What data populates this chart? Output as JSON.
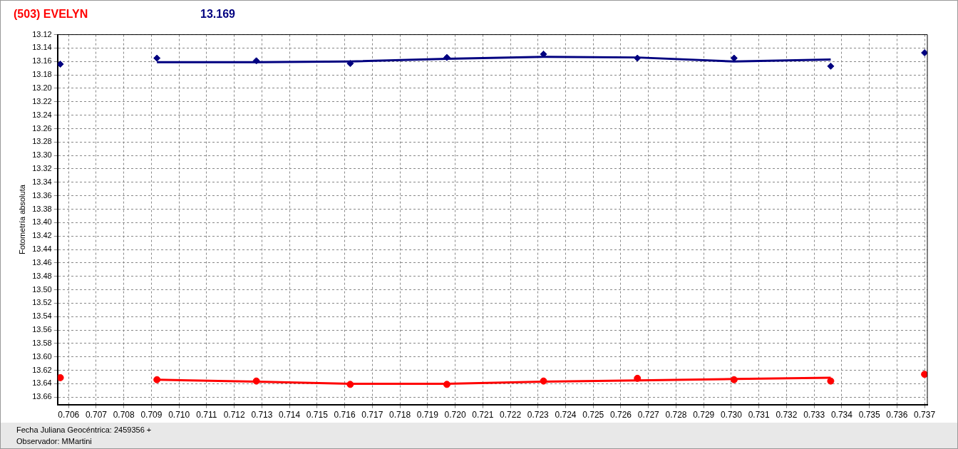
{
  "chart_data": {
    "type": "scatter",
    "title": "(503) EVELYN",
    "subtitle": "13.169",
    "xlabel": "Fecha Juliana Geocéntrica: 2459356 +",
    "ylabel": "Fotometría absoluta",
    "annotations": [
      "Observador: MMartini"
    ],
    "xlim": [
      0.7056,
      0.7371
    ],
    "ylim": [
      13.671,
      13.12
    ],
    "xticks": [
      0.706,
      0.707,
      0.708,
      0.709,
      {
        "value": 0.71,
        "label": "0.710"
      },
      0.711,
      0.712,
      0.713,
      0.714,
      0.715,
      0.716,
      0.717,
      0.718,
      0.719,
      {
        "value": 0.72,
        "label": "0.720"
      },
      0.721,
      0.722,
      0.723,
      0.724,
      0.725,
      0.726,
      0.727,
      0.728,
      0.729,
      {
        "value": 0.73,
        "label": "0.730"
      },
      0.731,
      0.732,
      0.733,
      0.734,
      0.735,
      0.736,
      0.737
    ],
    "yticks": [
      13.12,
      13.14,
      13.16,
      13.18,
      {
        "value": 13.2,
        "label": "13.20"
      },
      13.22,
      13.24,
      13.26,
      13.28,
      {
        "value": 13.3,
        "label": "13.30"
      },
      13.32,
      13.34,
      13.36,
      13.38,
      {
        "value": 13.4,
        "label": "13.40"
      },
      13.42,
      13.44,
      13.46,
      13.48,
      {
        "value": 13.5,
        "label": "13.50"
      },
      13.52,
      13.54,
      13.56,
      13.58,
      {
        "value": 13.6,
        "label": "13.60"
      },
      13.62,
      13.64,
      13.66
    ],
    "grid": true,
    "legend": false,
    "series": [
      {
        "color": "#000080",
        "marker": "diamond",
        "x": [
          0.7057,
          0.7092,
          0.7128,
          0.7162,
          0.7197,
          0.7232,
          0.7266,
          0.7301,
          0.7336,
          0.737
        ],
        "values": [
          13.164,
          13.155,
          13.159,
          13.163,
          13.154,
          13.149,
          13.155,
          13.155,
          13.167,
          13.147
        ]
      },
      {
        "type": "line",
        "color": "#000080",
        "marker": "none",
        "x": [
          0.7092,
          0.7128,
          0.7162,
          0.7197,
          0.7232,
          0.7266,
          0.7301,
          0.7336
        ],
        "values": [
          13.161,
          13.161,
          13.16,
          13.156,
          13.153,
          13.154,
          13.16,
          13.157
        ]
      },
      {
        "color": "#ff0000",
        "marker": "circle",
        "x": [
          0.7057,
          0.7092,
          0.7128,
          0.7162,
          0.7197,
          0.7232,
          0.7266,
          0.7301,
          0.7336,
          0.737
        ],
        "values": [
          13.631,
          13.634,
          13.636,
          13.641,
          13.641,
          13.636,
          13.632,
          13.634,
          13.636,
          13.626
        ]
      },
      {
        "type": "line",
        "color": "#ff0000",
        "marker": "none",
        "x": [
          0.7092,
          0.7128,
          0.7162,
          0.7197,
          0.7232,
          0.7266,
          0.7301,
          0.7336
        ],
        "values": [
          13.634,
          13.637,
          13.64,
          13.64,
          13.637,
          13.635,
          13.633,
          13.631
        ]
      }
    ]
  }
}
